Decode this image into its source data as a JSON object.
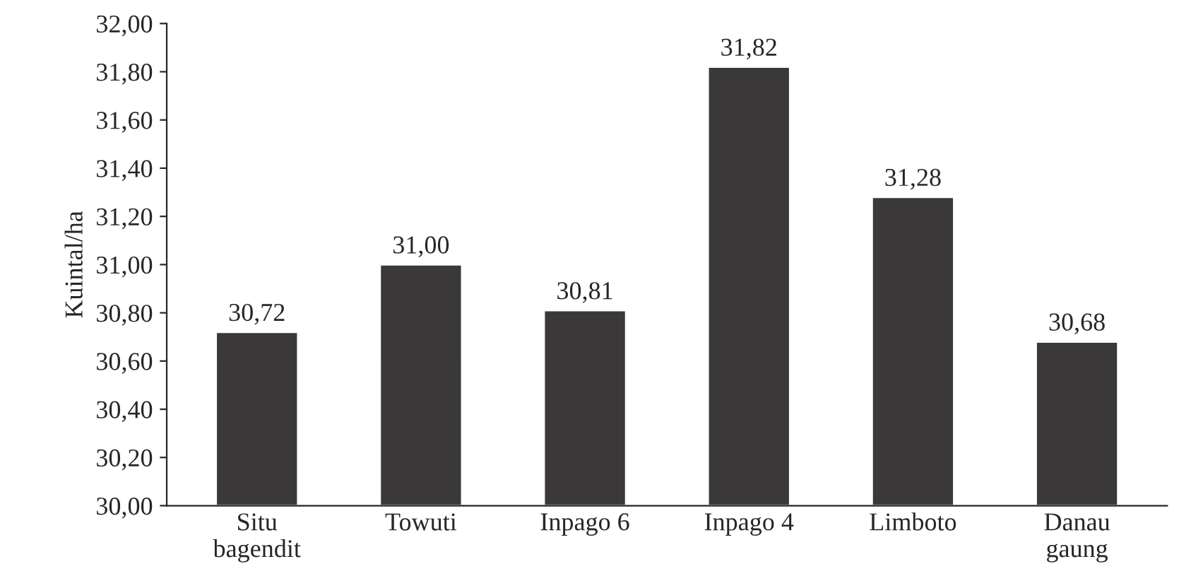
{
  "chart_data": {
    "type": "bar",
    "ylabel": "Kuintal/ha",
    "categories": [
      "Situ\nbagendit",
      "Towuti",
      "Inpago 6",
      "Inpago 4",
      "Limboto",
      "Danau\ngaung"
    ],
    "values": [
      30.72,
      31.0,
      30.81,
      31.82,
      31.28,
      30.68
    ],
    "value_labels": [
      "30,72",
      "31,00",
      "30,81",
      "31,82",
      "31,28",
      "30,68"
    ],
    "color": "#3b3839",
    "ylim": [
      30,
      32
    ],
    "yticks": [
      {
        "value": 30,
        "label": "30,00"
      },
      {
        "value": 30.2,
        "label": "30,20"
      },
      {
        "value": 30.4,
        "label": "30,40"
      },
      {
        "value": 30.6,
        "label": "30,60"
      },
      {
        "value": 30.8,
        "label": "30,80"
      },
      {
        "value": 31,
        "label": "31,00"
      },
      {
        "value": 31.2,
        "label": "31,20"
      },
      {
        "value": 31.4,
        "label": "31,40"
      },
      {
        "value": 31.6,
        "label": "31,60"
      },
      {
        "value": 31.8,
        "label": "31,80"
      },
      {
        "value": 32,
        "label": "32,00"
      }
    ],
    "grid": false
  }
}
